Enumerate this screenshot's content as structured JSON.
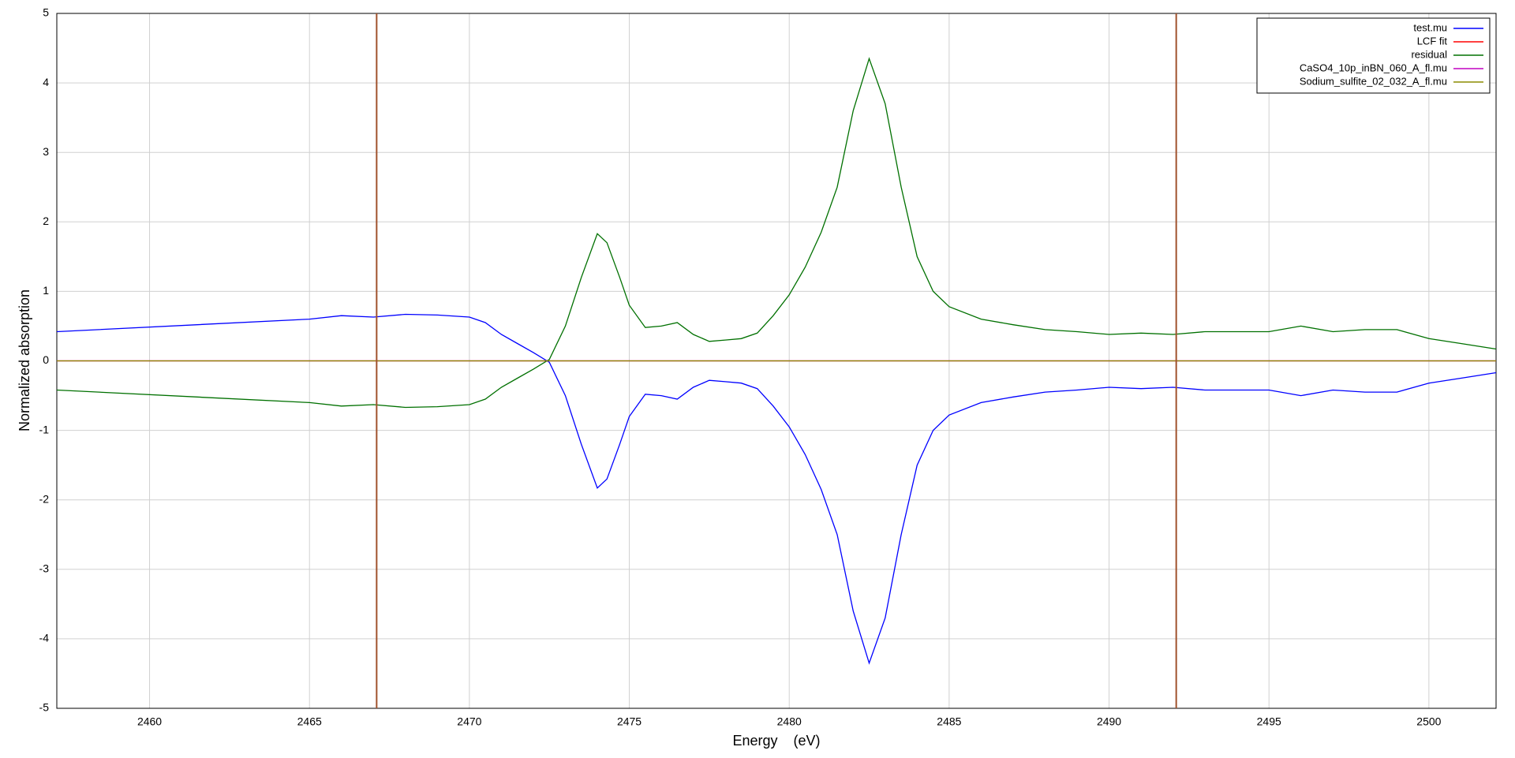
{
  "chart_data": {
    "type": "line",
    "xlabel": "Energy    (eV)",
    "ylabel": "Normalized absorption",
    "x": [
      2457.1,
      2465,
      2466,
      2467,
      2468,
      2469,
      2470,
      2470.5,
      2471,
      2471.5,
      2472,
      2472.5,
      2473,
      2473.5,
      2474,
      2474.3,
      2474.7,
      2475,
      2475.5,
      2476,
      2476.5,
      2477,
      2477.5,
      2478,
      2478.5,
      2479,
      2479.5,
      2480,
      2480.5,
      2481,
      2481.5,
      2482,
      2482.5,
      2483,
      2483.5,
      2484,
      2484.5,
      2485,
      2486,
      2487,
      2488,
      2489,
      2490,
      2491,
      2492,
      2493,
      2494,
      2495,
      2496,
      2497,
      2498,
      2499,
      2500,
      2501,
      2502.1
    ],
    "series": [
      {
        "name": "test.mu",
        "color": "#0000ff",
        "values": [
          0.42,
          0.6,
          0.65,
          0.63,
          0.67,
          0.66,
          0.63,
          0.55,
          0.38,
          0.25,
          0.12,
          -0.02,
          -0.5,
          -1.2,
          -1.83,
          -1.7,
          -1.2,
          -0.8,
          -0.48,
          -0.5,
          -0.55,
          -0.38,
          -0.28,
          -0.3,
          -0.32,
          -0.4,
          -0.65,
          -0.95,
          -1.35,
          -1.85,
          -2.5,
          -3.6,
          -4.35,
          -3.7,
          -2.5,
          -1.5,
          -1.0,
          -0.78,
          -0.6,
          -0.52,
          -0.45,
          -0.42,
          -0.38,
          -0.4,
          -0.38,
          -0.42,
          -0.42,
          -0.42,
          -0.5,
          -0.42,
          -0.45,
          -0.45,
          -0.32,
          -0.25,
          -0.17
        ]
      },
      {
        "name": "LCF fit",
        "color": "#ff0000",
        "values": [
          0,
          0,
          0,
          0,
          0,
          0,
          0,
          0,
          0,
          0,
          0,
          0,
          0,
          0,
          0,
          0,
          0,
          0,
          0,
          0,
          0,
          0,
          0,
          0,
          0,
          0,
          0,
          0,
          0,
          0,
          0,
          0,
          0,
          0,
          0,
          0,
          0,
          0,
          0,
          0,
          0,
          0,
          0,
          0,
          0,
          0,
          0,
          0,
          0,
          0,
          0,
          0,
          0,
          0,
          0
        ]
      },
      {
        "name": "residual",
        "color": "#007000",
        "values": [
          -0.42,
          -0.6,
          -0.65,
          -0.63,
          -0.67,
          -0.66,
          -0.63,
          -0.55,
          -0.38,
          -0.25,
          -0.12,
          0.02,
          0.5,
          1.2,
          1.83,
          1.7,
          1.2,
          0.8,
          0.48,
          0.5,
          0.55,
          0.38,
          0.28,
          0.3,
          0.32,
          0.4,
          0.65,
          0.95,
          1.35,
          1.85,
          2.5,
          3.6,
          4.35,
          3.7,
          2.5,
          1.5,
          1.0,
          0.78,
          0.6,
          0.52,
          0.45,
          0.42,
          0.38,
          0.4,
          0.38,
          0.42,
          0.42,
          0.42,
          0.5,
          0.42,
          0.45,
          0.45,
          0.32,
          0.25,
          0.17
        ]
      },
      {
        "name": "CaSO4_10p_inBN_060_A_fl.mu",
        "color": "#c000c0",
        "values": [
          0,
          0,
          0,
          0,
          0,
          0,
          0,
          0,
          0,
          0,
          0,
          0,
          0,
          0,
          0,
          0,
          0,
          0,
          0,
          0,
          0,
          0,
          0,
          0,
          0,
          0,
          0,
          0,
          0,
          0,
          0,
          0,
          0,
          0,
          0,
          0,
          0,
          0,
          0,
          0,
          0,
          0,
          0,
          0,
          0,
          0,
          0,
          0,
          0,
          0,
          0,
          0,
          0,
          0,
          0
        ]
      },
      {
        "name": "Sodium_sulfite_02_032_A_fl.mu",
        "color": "#8c8c00",
        "values": [
          0,
          0,
          0,
          0,
          0,
          0,
          0,
          0,
          0,
          0,
          0,
          0,
          0,
          0,
          0,
          0,
          0,
          0,
          0,
          0,
          0,
          0,
          0,
          0,
          0,
          0,
          0,
          0,
          0,
          0,
          0,
          0,
          0,
          0,
          0,
          0,
          0,
          0,
          0,
          0,
          0,
          0,
          0,
          0,
          0,
          0,
          0,
          0,
          0,
          0,
          0,
          0,
          0,
          0,
          0
        ]
      }
    ],
    "vlines": [
      2467.1,
      2492.1
    ],
    "vline_color": "#a0522d",
    "xlim": [
      2457.1,
      2502.1
    ],
    "ylim": [
      -5,
      5
    ],
    "xticks": [
      2460,
      2465,
      2470,
      2475,
      2480,
      2485,
      2490,
      2495,
      2500
    ],
    "yticks": [
      -5,
      -4,
      -3,
      -2,
      -1,
      0,
      1,
      2,
      3,
      4,
      5
    ],
    "grid": true,
    "legend": "upper right"
  }
}
